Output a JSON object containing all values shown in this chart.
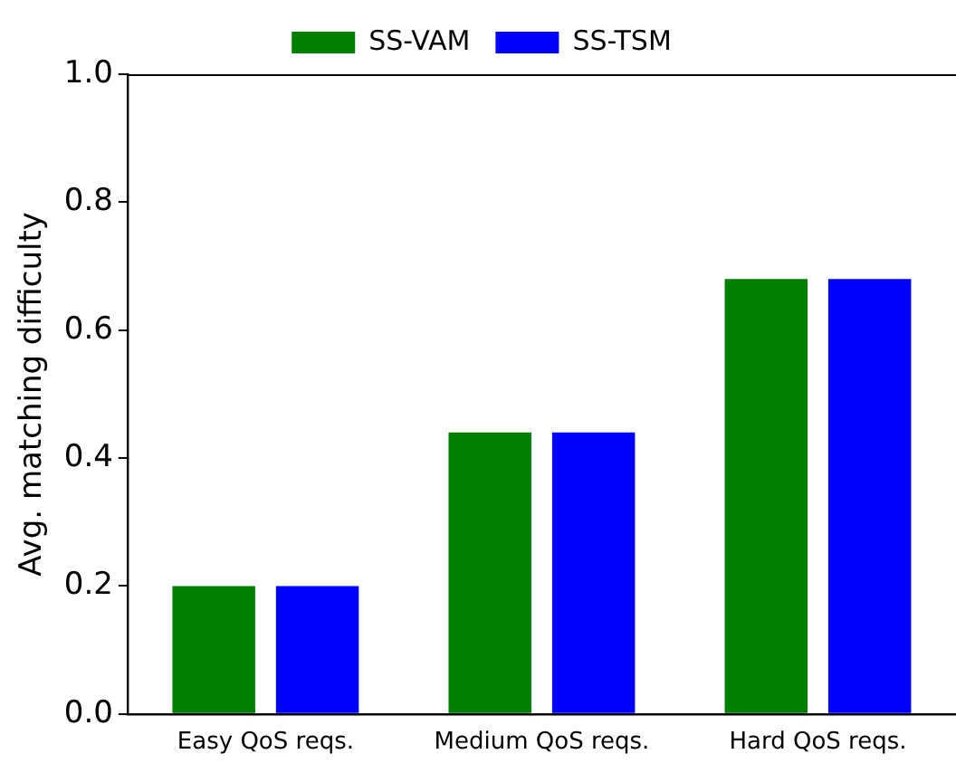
{
  "chart_data": {
    "type": "bar",
    "ylabel": "Avg. matching difficulty",
    "categories": [
      "Easy QoS reqs.",
      "Medium QoS reqs.",
      "Hard QoS reqs."
    ],
    "series": [
      {
        "name": "SS-VAM",
        "color": "#008000",
        "values": [
          0.2,
          0.44,
          0.68
        ]
      },
      {
        "name": "SS-TSM",
        "color": "#0000ff",
        "values": [
          0.2,
          0.44,
          0.68
        ]
      }
    ],
    "ylim": [
      0,
      1
    ],
    "yticks": [
      {
        "value": 0,
        "label": "0.0"
      },
      0.2,
      0.4,
      0.6,
      0.8,
      {
        "value": 1,
        "label": "1.0"
      }
    ],
    "grid": false,
    "legend": "top"
  }
}
